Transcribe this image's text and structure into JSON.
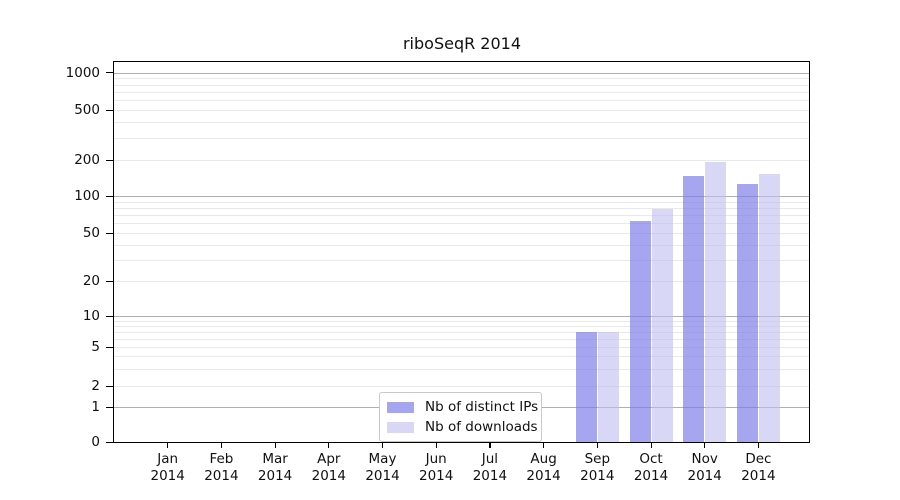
{
  "title": "riboSeqR 2014",
  "colors": {
    "distinct_ips_bar": "rgba(122,122,233,0.68)",
    "downloads_bar": "rgba(190,190,240,0.6)",
    "grid_major": "#b0b0b0",
    "grid_minor": "#e9e9e9",
    "axis": "#000000",
    "legend_border": "#c9c9c9"
  },
  "chart_data": {
    "type": "bar",
    "title": "riboSeqR 2014",
    "categories": [
      "Jan",
      "Feb",
      "Mar",
      "Apr",
      "May",
      "Jun",
      "Jul",
      "Aug",
      "Sep",
      "Oct",
      "Nov",
      "Dec"
    ],
    "year_label": "2014",
    "series": [
      {
        "name": "Nb of distinct IPs",
        "values": [
          0,
          0,
          0,
          0,
          0,
          0,
          0,
          0,
          7,
          63,
          146,
          127
        ]
      },
      {
        "name": "Nb of downloads",
        "values": [
          0,
          0,
          0,
          0,
          0,
          0,
          0,
          0,
          7,
          78,
          193,
          153
        ]
      }
    ],
    "y_axis": {
      "scale": "log (linear below 1)",
      "tick_labels": [
        1000,
        500,
        200,
        100,
        50,
        20,
        10,
        5,
        2,
        1,
        0
      ],
      "range": [
        0,
        1000
      ],
      "grid": "on",
      "major_grid_values": [
        1,
        10,
        100,
        1000
      ]
    },
    "legend_position": "inside bottom-center-left",
    "bar_group": "two bars per month, side by side"
  }
}
